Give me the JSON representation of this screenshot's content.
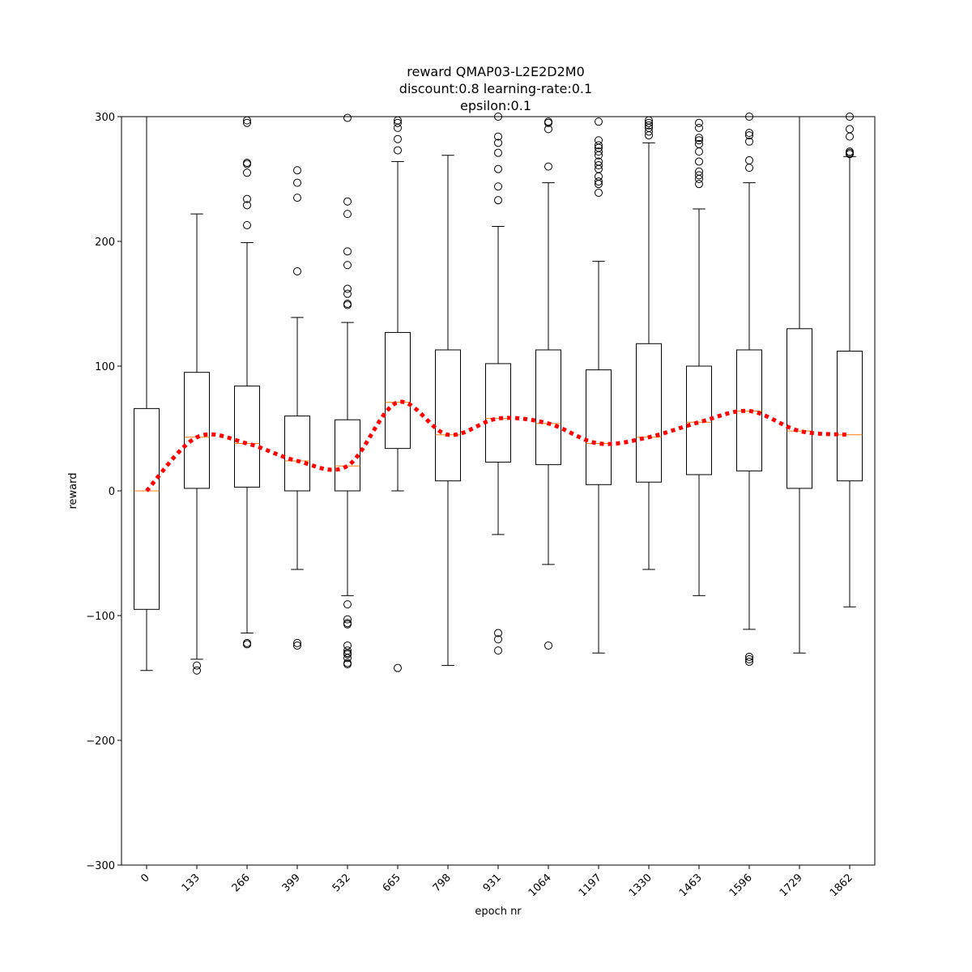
{
  "chart_data": {
    "type": "box",
    "title": [
      "reward QMAP03-L2E2D2M0",
      "discount:0.8 learning-rate:0.1",
      "epsilon:0.1"
    ],
    "xlabel": "epoch nr",
    "ylabel": "reward",
    "ylim": [
      -300,
      300
    ],
    "yticks": [
      -300,
      -200,
      -100,
      0,
      100,
      200,
      300
    ],
    "grid": false,
    "categories": [
      "0",
      "133",
      "266",
      "399",
      "532",
      "665",
      "798",
      "931",
      "1064",
      "1197",
      "1330",
      "1463",
      "1596",
      "1729",
      "1862"
    ],
    "boxes": [
      {
        "whislo": -144,
        "q1": -95,
        "med": 0,
        "q3": 66,
        "whishi": 300,
        "fliers": []
      },
      {
        "whislo": -135,
        "q1": 2,
        "med": 43,
        "q3": 95,
        "whishi": 222,
        "fliers": [
          -140,
          -144
        ]
      },
      {
        "whislo": -114,
        "q1": 3,
        "med": 38,
        "q3": 84,
        "whishi": 199,
        "fliers": [
          -122,
          -123,
          213,
          229,
          234,
          255,
          262,
          263,
          295,
          297
        ]
      },
      {
        "whislo": -63,
        "q1": 0,
        "med": 24,
        "q3": 60,
        "whishi": 139,
        "fliers": [
          -122,
          -124,
          176,
          235,
          247,
          257
        ]
      },
      {
        "whislo": -84,
        "q1": 0,
        "med": 20,
        "q3": 57,
        "whishi": 135,
        "fliers": [
          -91,
          -103,
          -106,
          -107,
          -124,
          -128,
          -130,
          -131,
          -134,
          -138,
          -139,
          149,
          150,
          158,
          162,
          181,
          192,
          222,
          232,
          299
        ]
      },
      {
        "whislo": 0,
        "q1": 34,
        "med": 71,
        "q3": 127,
        "whishi": 264,
        "fliers": [
          -142,
          273,
          282,
          291,
          295,
          297
        ]
      },
      {
        "whislo": -140,
        "q1": 8,
        "med": 45,
        "q3": 113,
        "whishi": 269,
        "fliers": []
      },
      {
        "whislo": -35,
        "q1": 23,
        "med": 58,
        "q3": 102,
        "whishi": 212,
        "fliers": [
          -114,
          -119,
          -128,
          233,
          244,
          258,
          271,
          279,
          284,
          300
        ]
      },
      {
        "whislo": -59,
        "q1": 21,
        "med": 54,
        "q3": 113,
        "whishi": 247,
        "fliers": [
          -124,
          260,
          290,
          295,
          296
        ]
      },
      {
        "whislo": -130,
        "q1": 5,
        "med": 38,
        "q3": 97,
        "whishi": 184,
        "fliers": [
          239,
          246,
          248,
          252,
          258,
          261,
          264,
          269,
          272,
          275,
          277,
          281,
          296
        ]
      },
      {
        "whislo": -63,
        "q1": 7,
        "med": 43,
        "q3": 118,
        "whishi": 279,
        "fliers": [
          285,
          288,
          291,
          293,
          295,
          297
        ]
      },
      {
        "whislo": -84,
        "q1": 13,
        "med": 55,
        "q3": 100,
        "whishi": 226,
        "fliers": [
          246,
          250,
          253,
          256,
          264,
          272,
          278,
          281,
          283,
          291,
          295
        ]
      },
      {
        "whislo": -111,
        "q1": 16,
        "med": 64,
        "q3": 113,
        "whishi": 247,
        "fliers": [
          -133,
          -135,
          -137,
          259,
          265,
          280,
          285,
          287,
          300
        ]
      },
      {
        "whislo": -130,
        "q1": 2,
        "med": 48,
        "q3": 130,
        "whishi": 300,
        "fliers": []
      },
      {
        "whislo": -93,
        "q1": 8,
        "med": 45,
        "q3": 112,
        "whishi": 268,
        "fliers": [
          270,
          271,
          272,
          284,
          290,
          300
        ]
      }
    ],
    "trend_line": {
      "values": [
        0,
        43,
        38,
        24,
        20,
        71,
        45,
        58,
        54,
        38,
        43,
        55,
        64,
        48,
        45
      ],
      "color": "#ff0000",
      "style": "dotted"
    },
    "colors": {
      "box": "#000000",
      "median": "#ff7f0e",
      "trend": "#ff0000"
    }
  }
}
